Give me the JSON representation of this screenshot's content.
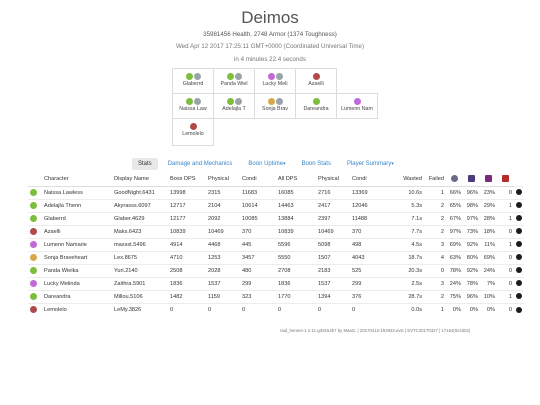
{
  "header": {
    "title": "Deimos",
    "health_line": "35981456 Health. 2748 Armor (1374 Toughness)",
    "date_line": "Wed Apr 12 2017 17:25:11 GMT+0000 (Coordinated Universal Time)",
    "duration_line": "in 4 minutes 22.4 seconds"
  },
  "party": [
    [
      {
        "name": "Glaberrd",
        "icons": [
          "#7dbe3c",
          "#9aa3a8"
        ]
      },
      {
        "name": "Panda Wiel",
        "icons": [
          "#7dbe3c",
          "#9aa3a8"
        ]
      },
      {
        "name": "Lucky Meli",
        "icons": [
          "#c06ad8",
          "#9aa3a8"
        ]
      },
      {
        "name": "Azaelli",
        "icons": [
          "#b04a4a"
        ]
      }
    ],
    [
      {
        "name": "Naissa Law",
        "icons": [
          "#7dbe3c",
          "#9aa3a8"
        ]
      },
      {
        "name": "Adelajla T",
        "icons": [
          "#7dbe3c",
          "#9aa3a8"
        ]
      },
      {
        "name": "Sonja Brav",
        "icons": [
          "#d9a84a",
          "#9aa3a8"
        ]
      },
      {
        "name": "Dareandra",
        "icons": [
          "#7dbe3c"
        ]
      },
      {
        "name": "Lumenn Nam",
        "icons": [
          "#c06ad8"
        ]
      }
    ],
    [
      {
        "name": "Lemolelo",
        "icons": [
          "#b04a4a"
        ]
      }
    ]
  ],
  "tabs": [
    {
      "label": "Stats",
      "active": true,
      "dropdown": false
    },
    {
      "label": "Damage and Mechanics",
      "active": false,
      "dropdown": false
    },
    {
      "label": "Boon Uptime",
      "active": false,
      "dropdown": true
    },
    {
      "label": "Boon Stats",
      "active": false,
      "dropdown": false
    },
    {
      "label": "Player Summary",
      "active": false,
      "dropdown": true
    }
  ],
  "table": {
    "columns": [
      "",
      "Character",
      "Display Name",
      "Boss DPS",
      "Physical",
      "Condi",
      "All DPS",
      "Physical",
      "Condi",
      "Wasted",
      "Failed"
    ],
    "icon_columns": [
      {
        "name": "downs-icon",
        "color": "#6a6a8a"
      },
      {
        "name": "swap-icon",
        "color": "#4a3c7a"
      },
      {
        "name": "boon-icon",
        "color": "#7a2a7a"
      },
      {
        "name": "health-icon",
        "color": "#b52a2a"
      }
    ],
    "rows": [
      {
        "icon": "#7dbe3c",
        "character": "Naissa Lawless",
        "display": "GoodNight.6431",
        "boss_dps": "13998",
        "boss_phys": "2315",
        "boss_condi": "11683",
        "all_dps": "16085",
        "all_phys": "2716",
        "all_condi": "13369",
        "wasted": "10.6s",
        "failed": "1",
        "p1": "66%",
        "p2": "96%",
        "p3": "23%",
        "n": "0"
      },
      {
        "icon": "#7dbe3c",
        "character": "Adelajla Thenn",
        "display": "Akyrasss.6097",
        "boss_dps": "12717",
        "boss_phys": "2104",
        "boss_condi": "10614",
        "all_dps": "14463",
        "all_phys": "2417",
        "all_condi": "12046",
        "wasted": "5.3s",
        "failed": "2",
        "p1": "65%",
        "p2": "98%",
        "p3": "29%",
        "n": "1"
      },
      {
        "icon": "#7dbe3c",
        "character": "Glaberrd",
        "display": "Glaber.4629",
        "boss_dps": "12177",
        "boss_phys": "2092",
        "boss_condi": "10085",
        "all_dps": "13884",
        "all_phys": "2397",
        "all_condi": "11488",
        "wasted": "7.1s",
        "failed": "2",
        "p1": "67%",
        "p2": "97%",
        "p3": "28%",
        "n": "1"
      },
      {
        "icon": "#b04a4a",
        "character": "Azaelli",
        "display": "Maks.6423",
        "boss_dps": "10839",
        "boss_phys": "10469",
        "boss_condi": "370",
        "all_dps": "10839",
        "all_phys": "10469",
        "all_condi": "370",
        "wasted": "7.7s",
        "failed": "2",
        "p1": "97%",
        "p2": "73%",
        "p3": "18%",
        "n": "0"
      },
      {
        "icon": "#c06ad8",
        "character": "Lumenn Namarie",
        "display": "maxsst.5496",
        "boss_dps": "4914",
        "boss_phys": "4468",
        "boss_condi": "445",
        "all_dps": "5596",
        "all_phys": "5098",
        "all_condi": "498",
        "wasted": "4.5s",
        "failed": "3",
        "p1": "69%",
        "p2": "92%",
        "p3": "11%",
        "n": "1"
      },
      {
        "icon": "#d9a84a",
        "character": "Sonja Braveheart",
        "display": "Lex.8675",
        "boss_dps": "4710",
        "boss_phys": "1253",
        "boss_condi": "3457",
        "all_dps": "5550",
        "all_phys": "1507",
        "all_condi": "4043",
        "wasted": "18.7s",
        "failed": "4",
        "p1": "63%",
        "p2": "80%",
        "p3": "69%",
        "n": "0"
      },
      {
        "icon": "#7dbe3c",
        "character": "Panda Wielka",
        "display": "Yuri.2140",
        "boss_dps": "2508",
        "boss_phys": "2028",
        "boss_condi": "480",
        "all_dps": "2708",
        "all_phys": "2183",
        "all_condi": "525",
        "wasted": "20.3s",
        "failed": "0",
        "p1": "78%",
        "p2": "92%",
        "p3": "24%",
        "n": "0"
      },
      {
        "icon": "#c06ad8",
        "character": "Lucky Melinda",
        "display": "Zaithra.5901",
        "boss_dps": "1836",
        "boss_phys": "1537",
        "boss_condi": "299",
        "all_dps": "1836",
        "all_phys": "1537",
        "all_condi": "299",
        "wasted": "2.5s",
        "failed": "3",
        "p1": "24%",
        "p2": "78%",
        "p3": "7%",
        "n": "0"
      },
      {
        "icon": "#7dbe3c",
        "character": "Dareandra",
        "display": "Millou.5106",
        "boss_dps": "1482",
        "boss_phys": "1159",
        "boss_condi": "323",
        "all_dps": "1770",
        "all_phys": "1394",
        "all_condi": "376",
        "wasted": "28.7s",
        "failed": "2",
        "p1": "75%",
        "p2": "96%",
        "p3": "10%",
        "n": "1"
      },
      {
        "icon": "#b04a4a",
        "character": "Lemolelo",
        "display": "LeMy.3826",
        "boss_dps": "0",
        "boss_phys": "0",
        "boss_condi": "0",
        "all_dps": "0",
        "all_phys": "0",
        "all_condi": "0",
        "wasted": "0.0s",
        "failed": "1",
        "p1": "0%",
        "p2": "0%",
        "p3": "0%",
        "n": "0"
      }
    ]
  },
  "footer": "raid_heroes-1.1-11-g39154b7 by MaaG. | 20170412-192933.evtc | EVTC20170327 | 17154(0x4302)"
}
